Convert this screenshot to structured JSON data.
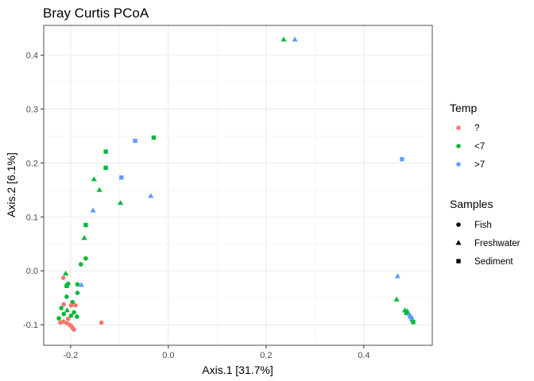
{
  "chart_data": {
    "type": "scatter",
    "title": "Bray Curtis PCoA",
    "xlabel": "Axis.1   [31.7%]",
    "ylabel": "Axis.2   [6.1%]",
    "xlim": [
      -0.255,
      0.54
    ],
    "ylim": [
      -0.138,
      0.455
    ],
    "xticks": [
      -0.2,
      0.0,
      0.2,
      0.4
    ],
    "xtick_labels": [
      "-0.2",
      "0.0",
      "0.2",
      "0.4"
    ],
    "yticks": [
      -0.1,
      0.0,
      0.1,
      0.2,
      0.3,
      0.4
    ],
    "ytick_labels": [
      "-0.1",
      "0.0",
      "0.1",
      "0.2",
      "0.3",
      "0.4"
    ],
    "grid": true,
    "colors": {
      "?": "#F8766D",
      "<7": "#00BA38",
      ">7": "#619CFF"
    },
    "legends": [
      {
        "title": "Temp",
        "kind": "color",
        "entries": [
          {
            "label": "?",
            "key": "?"
          },
          {
            "label": "<7",
            "key": "<7"
          },
          {
            "label": ">7",
            "key": ">7"
          }
        ]
      },
      {
        "title": "Samples",
        "kind": "shape",
        "entries": [
          {
            "label": "Fish",
            "shape": "circle"
          },
          {
            "label": "Freshwater",
            "shape": "triangle"
          },
          {
            "label": "Sediment",
            "shape": "square"
          }
        ]
      }
    ],
    "points": [
      {
        "x": 0.236,
        "y": 0.429,
        "temp": "<7",
        "sample": "Freshwater"
      },
      {
        "x": 0.259,
        "y": 0.429,
        "temp": ">7",
        "sample": "Freshwater"
      },
      {
        "x": 0.478,
        "y": 0.207,
        "temp": ">7",
        "sample": "Sediment"
      },
      {
        "x": -0.03,
        "y": 0.247,
        "temp": "<7",
        "sample": "Sediment"
      },
      {
        "x": -0.068,
        "y": 0.241,
        "temp": ">7",
        "sample": "Sediment"
      },
      {
        "x": -0.128,
        "y": 0.221,
        "temp": "<7",
        "sample": "Sediment"
      },
      {
        "x": -0.128,
        "y": 0.191,
        "temp": "<7",
        "sample": "Sediment"
      },
      {
        "x": -0.096,
        "y": 0.173,
        "temp": ">7",
        "sample": "Sediment"
      },
      {
        "x": -0.152,
        "y": 0.17,
        "temp": "<7",
        "sample": "Freshwater"
      },
      {
        "x": -0.141,
        "y": 0.15,
        "temp": "<7",
        "sample": "Freshwater"
      },
      {
        "x": -0.036,
        "y": 0.139,
        "temp": ">7",
        "sample": "Freshwater"
      },
      {
        "x": -0.098,
        "y": 0.126,
        "temp": "<7",
        "sample": "Freshwater"
      },
      {
        "x": -0.154,
        "y": 0.112,
        "temp": ">7",
        "sample": "Freshwater"
      },
      {
        "x": -0.169,
        "y": 0.085,
        "temp": "<7",
        "sample": "Sediment"
      },
      {
        "x": -0.172,
        "y": 0.061,
        "temp": "<7",
        "sample": "Freshwater"
      },
      {
        "x": -0.169,
        "y": 0.023,
        "temp": "<7",
        "sample": "Fish"
      },
      {
        "x": -0.179,
        "y": 0.012,
        "temp": "<7",
        "sample": "Fish"
      },
      {
        "x": -0.21,
        "y": -0.005,
        "temp": "<7",
        "sample": "Freshwater"
      },
      {
        "x": -0.215,
        "y": -0.013,
        "temp": "?",
        "sample": "Fish"
      },
      {
        "x": -0.205,
        "y": -0.024,
        "temp": "<7",
        "sample": "Fish"
      },
      {
        "x": -0.208,
        "y": -0.028,
        "temp": "<7",
        "sample": "Sediment"
      },
      {
        "x": -0.186,
        "y": -0.025,
        "temp": "<7",
        "sample": "Fish"
      },
      {
        "x": -0.178,
        "y": -0.026,
        "temp": ">7",
        "sample": "Freshwater"
      },
      {
        "x": -0.186,
        "y": -0.041,
        "temp": "<7",
        "sample": "Fish"
      },
      {
        "x": -0.208,
        "y": -0.048,
        "temp": "<7",
        "sample": "Fish"
      },
      {
        "x": -0.196,
        "y": -0.058,
        "temp": "<7",
        "sample": "Fish"
      },
      {
        "x": -0.214,
        "y": -0.062,
        "temp": "?",
        "sample": "Fish"
      },
      {
        "x": -0.199,
        "y": -0.064,
        "temp": "?",
        "sample": "Fish"
      },
      {
        "x": -0.19,
        "y": -0.064,
        "temp": "?",
        "sample": "Fish"
      },
      {
        "x": -0.219,
        "y": -0.069,
        "temp": "<7",
        "sample": "Fish"
      },
      {
        "x": -0.207,
        "y": -0.073,
        "temp": "<7",
        "sample": "Freshwater"
      },
      {
        "x": -0.193,
        "y": -0.077,
        "temp": "<7",
        "sample": "Fish"
      },
      {
        "x": -0.214,
        "y": -0.08,
        "temp": "<7",
        "sample": "Fish"
      },
      {
        "x": -0.199,
        "y": -0.083,
        "temp": "<7",
        "sample": "Fish"
      },
      {
        "x": -0.187,
        "y": -0.085,
        "temp": "<7",
        "sample": "Fish"
      },
      {
        "x": -0.224,
        "y": -0.088,
        "temp": "<7",
        "sample": "Fish"
      },
      {
        "x": -0.205,
        "y": -0.089,
        "temp": "?",
        "sample": "Fish"
      },
      {
        "x": -0.215,
        "y": -0.094,
        "temp": "?",
        "sample": "Fish"
      },
      {
        "x": -0.208,
        "y": -0.097,
        "temp": "?",
        "sample": "Fish"
      },
      {
        "x": -0.221,
        "y": -0.096,
        "temp": "?",
        "sample": "Fish"
      },
      {
        "x": -0.202,
        "y": -0.1,
        "temp": "?",
        "sample": "Fish"
      },
      {
        "x": -0.198,
        "y": -0.103,
        "temp": "?",
        "sample": "Fish"
      },
      {
        "x": -0.196,
        "y": -0.106,
        "temp": "?",
        "sample": "Fish"
      },
      {
        "x": -0.193,
        "y": -0.109,
        "temp": "?",
        "sample": "Fish"
      },
      {
        "x": -0.137,
        "y": -0.096,
        "temp": "?",
        "sample": "Fish"
      },
      {
        "x": 0.469,
        "y": -0.01,
        "temp": ">7",
        "sample": "Freshwater"
      },
      {
        "x": 0.467,
        "y": -0.053,
        "temp": "<7",
        "sample": "Freshwater"
      },
      {
        "x": 0.484,
        "y": -0.073,
        "temp": "<7",
        "sample": "Freshwater"
      },
      {
        "x": 0.489,
        "y": -0.075,
        "temp": "<7",
        "sample": "Freshwater"
      },
      {
        "x": 0.487,
        "y": -0.078,
        "temp": "<7",
        "sample": "Sediment"
      },
      {
        "x": 0.493,
        "y": -0.082,
        "temp": ">7",
        "sample": "Fish"
      },
      {
        "x": 0.495,
        "y": -0.085,
        "temp": ">7",
        "sample": "Freshwater"
      },
      {
        "x": 0.497,
        "y": -0.087,
        "temp": ">7",
        "sample": "Fish"
      },
      {
        "x": 0.498,
        "y": -0.09,
        "temp": ">7",
        "sample": "Sediment"
      },
      {
        "x": 0.501,
        "y": -0.095,
        "temp": "<7",
        "sample": "Sediment"
      }
    ]
  }
}
